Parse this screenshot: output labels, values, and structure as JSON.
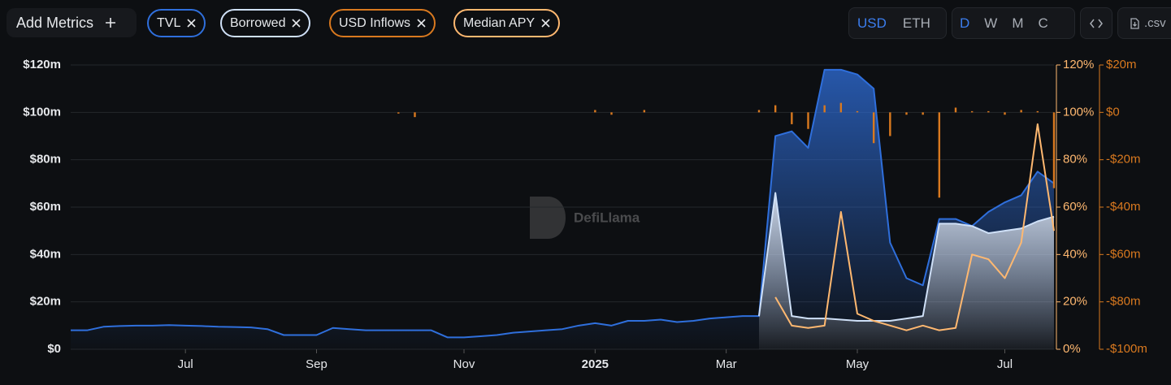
{
  "toolbar": {
    "add_metrics": "Add Metrics",
    "currency": [
      "USD",
      "ETH"
    ],
    "intervals": [
      "D",
      "W",
      "M",
      "C"
    ],
    "csv": ".csv"
  },
  "watermark": "DefiLlama",
  "chart_data": {
    "type": "line",
    "categories": [
      null,
      null,
      null,
      null,
      null,
      null,
      null,
      "Jul",
      null,
      null,
      null,
      null,
      null,
      null,
      null,
      "Sep",
      null,
      null,
      null,
      null,
      null,
      null,
      null,
      null,
      "Nov",
      null,
      null,
      null,
      null,
      null,
      null,
      null,
      "2025",
      null,
      null,
      null,
      null,
      null,
      null,
      null,
      "Mar",
      null,
      null,
      null,
      null,
      null,
      null,
      null,
      "May",
      null,
      null,
      null,
      null,
      null,
      null,
      null,
      null,
      "Jul",
      null,
      null,
      null
    ],
    "series": [
      {
        "name": "TVL",
        "color": "#2f6fdc",
        "area": true,
        "values": [
          8,
          8,
          9.5,
          9.8,
          10,
          10,
          10.2,
          10,
          9.8,
          9.5,
          9.4,
          9.2,
          8.5,
          6,
          6,
          6,
          9,
          8.5,
          8,
          8,
          8,
          8,
          8,
          5,
          5,
          5.5,
          6,
          7,
          7.5,
          8,
          8.5,
          10,
          11,
          10,
          12,
          12,
          12.5,
          11.5,
          12,
          13,
          13.5,
          14,
          14,
          90,
          92,
          85,
          118,
          118,
          116,
          110,
          45,
          30,
          27,
          55,
          55,
          52,
          58,
          62,
          65,
          75,
          70
        ]
      },
      {
        "name": "Borrowed",
        "color": "#cfe0f7",
        "area": true,
        "values": [
          null,
          null,
          null,
          null,
          null,
          null,
          null,
          null,
          null,
          null,
          null,
          null,
          null,
          null,
          null,
          null,
          null,
          null,
          null,
          null,
          null,
          null,
          null,
          null,
          null,
          null,
          null,
          null,
          null,
          null,
          null,
          null,
          null,
          null,
          null,
          null,
          null,
          null,
          null,
          null,
          null,
          null,
          14,
          66,
          14,
          13,
          13,
          12.5,
          12,
          12,
          12,
          13,
          14,
          53,
          53,
          52,
          49,
          50,
          51,
          54,
          56
        ]
      },
      {
        "name": "USD Inflows",
        "color": "#d9791f",
        "type": "bar",
        "axis": "y3",
        "values": [
          0,
          0,
          0,
          0,
          0,
          0,
          0,
          0,
          0,
          0,
          0,
          0,
          0,
          0,
          0,
          0,
          0,
          0,
          0,
          0,
          -0.5,
          -2,
          0,
          0,
          0,
          0,
          0,
          0,
          0,
          0,
          0,
          0,
          1,
          -1,
          0,
          1,
          0,
          0,
          0,
          0,
          0,
          0,
          1,
          3,
          -5,
          -7,
          3,
          4,
          0.5,
          -13,
          -10,
          -1,
          -1,
          -36,
          2,
          0.5,
          0.5,
          -1,
          1,
          0.5,
          -32
        ]
      },
      {
        "name": "Median APY",
        "color": "#ffb870",
        "axis": "y2",
        "values": [
          null,
          null,
          null,
          null,
          null,
          null,
          null,
          null,
          null,
          null,
          null,
          null,
          null,
          null,
          null,
          null,
          null,
          null,
          null,
          null,
          null,
          null,
          null,
          null,
          null,
          null,
          null,
          null,
          null,
          null,
          null,
          null,
          null,
          null,
          null,
          null,
          null,
          null,
          null,
          null,
          null,
          null,
          null,
          22,
          10,
          9,
          10,
          58,
          15,
          12,
          10,
          8,
          10,
          8,
          9,
          40,
          38,
          30,
          45,
          95,
          50
        ]
      }
    ],
    "ylim": [
      0,
      120
    ],
    "yticks": [
      {
        "value": 0,
        "label": "$0"
      },
      {
        "value": 20,
        "label": "$20m"
      },
      {
        "value": 40,
        "label": "$40m"
      },
      {
        "value": 60,
        "label": "$60m"
      },
      {
        "value": 80,
        "label": "$80m"
      },
      {
        "value": 100,
        "label": "$100m"
      },
      {
        "value": 120,
        "label": "$120m"
      }
    ],
    "y2lim": [
      0,
      120
    ],
    "y2ticks": [
      {
        "value": 0,
        "label": "0%"
      },
      {
        "value": 20,
        "label": "20%"
      },
      {
        "value": 40,
        "label": "40%"
      },
      {
        "value": 60,
        "label": "60%"
      },
      {
        "value": 80,
        "label": "80%"
      },
      {
        "value": 100,
        "label": "100%"
      },
      {
        "value": 120,
        "label": "120%"
      }
    ],
    "y3lim": [
      -100,
      20
    ],
    "y3ticks": [
      {
        "value": -100,
        "label": "-$100m"
      },
      {
        "value": -80,
        "label": "-$80m"
      },
      {
        "value": -60,
        "label": "-$60m"
      },
      {
        "value": -40,
        "label": "-$40m"
      },
      {
        "value": -20,
        "label": "-$20m"
      },
      {
        "value": 0,
        "label": "$0"
      },
      {
        "value": 20,
        "label": "$20m"
      }
    ],
    "grid": true
  }
}
